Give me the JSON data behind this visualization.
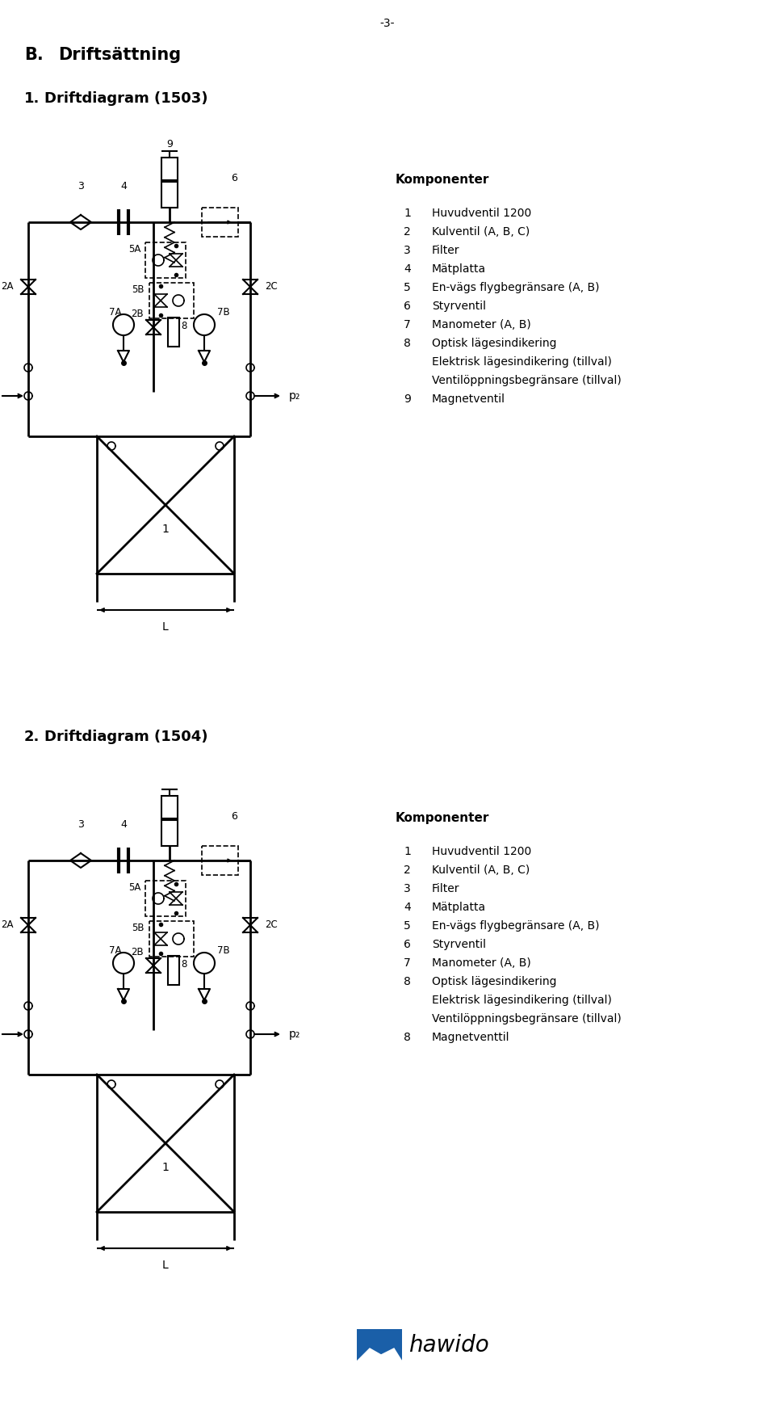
{
  "page_number": "-3-",
  "section_title": "B.",
  "section_subtitle": "Driftsättning",
  "diagram1_title": "1.",
  "diagram1_subtitle": "Driftdiagram (1503)",
  "diagram2_title": "2.",
  "diagram2_subtitle": "Driftdiagram (1504)",
  "komponenter_title": "Komponenter",
  "components_1503": [
    [
      "1",
      "Huvudventil 1200"
    ],
    [
      "2",
      "Kulventil (A, B, C)"
    ],
    [
      "3",
      "Filter"
    ],
    [
      "4",
      "Mätplatta"
    ],
    [
      "5",
      "En-vägs flygbegränsare (A, B)"
    ],
    [
      "6",
      "Styrventil"
    ],
    [
      "7",
      "Manometer (A, B)"
    ],
    [
      "8",
      "Optisk lägesindikering"
    ],
    [
      "",
      "Elektrisk lägesindikering (tillval)"
    ],
    [
      "",
      "Ventilöppningsbegränsare (tillval)"
    ],
    [
      "9",
      "Magnetventil"
    ]
  ],
  "components_1504": [
    [
      "1",
      "Huvudventil 1200"
    ],
    [
      "2",
      "Kulventil (A, B, C)"
    ],
    [
      "3",
      "Filter"
    ],
    [
      "4",
      "Mätplatta"
    ],
    [
      "5",
      "En-vägs flygbegränsare (A, B)"
    ],
    [
      "6",
      "Styrventil"
    ],
    [
      "7",
      "Manometer (A, B)"
    ],
    [
      "8",
      "Optisk lägesindikering"
    ],
    [
      "",
      "Elektrisk lägesindikering (tillval)"
    ],
    [
      "",
      "Ventilöppningsbegränsare (tillval)"
    ],
    [
      "8",
      "Magnetventtil"
    ]
  ],
  "bg_color": "#ffffff",
  "text_color": "#000000",
  "line_color": "#000000",
  "hawido_color": "#1a5fa8"
}
